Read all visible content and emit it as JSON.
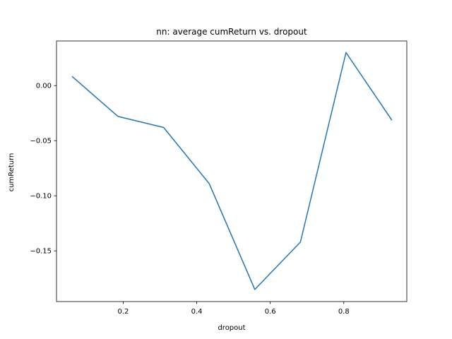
{
  "chart_data": {
    "type": "line",
    "title": "nn: average cumReturn vs. dropout",
    "xlabel": "dropout",
    "ylabel": "cumReturn",
    "xlim": [
      0.0186,
      0.9714
    ],
    "ylim": [
      -0.196,
      0.0405
    ],
    "x_ticks": [
      0.2,
      0.4,
      0.6,
      0.8
    ],
    "x_tick_labels": [
      "0.2",
      "0.4",
      "0.6",
      "0.8"
    ],
    "y_ticks": [
      0.0,
      -0.05,
      -0.1,
      -0.15
    ],
    "y_tick_labels": [
      "0.00",
      "−0.05",
      "−0.10",
      "−0.15"
    ],
    "grid": false,
    "series": [
      {
        "color": "#1f77b4",
        "x": [
          0.062,
          0.186,
          0.31,
          0.434,
          0.558,
          0.682,
          0.806,
          0.93
        ],
        "y": [
          0.008,
          -0.028,
          -0.038,
          -0.089,
          -0.185,
          -0.142,
          0.03,
          -0.031
        ]
      }
    ]
  }
}
